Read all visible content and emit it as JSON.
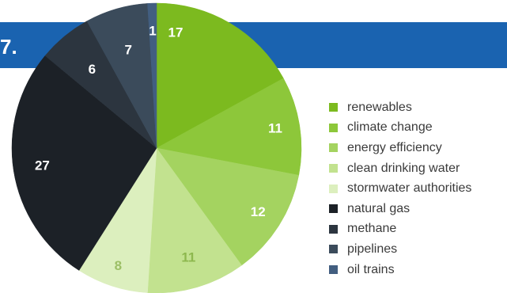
{
  "header": {
    "fragment_text": "7.",
    "bar_color": "#1a63b0"
  },
  "chart_data": {
    "type": "pie",
    "title": "",
    "start_angle_deg": 0,
    "direction": "clockwise",
    "slices": [
      {
        "label": "renewables",
        "value": 17,
        "color": "#7cba1f",
        "label_color": "#ffffff"
      },
      {
        "label": "climate change",
        "value": 11,
        "color": "#8dc73a",
        "label_color": "#ffffff"
      },
      {
        "label": "energy efficiency",
        "value": 12,
        "color": "#a4d360",
        "label_color": "#ffffff"
      },
      {
        "label": "clean drinking water",
        "value": 11,
        "color": "#c2e28f",
        "label_color": "#8db84e"
      },
      {
        "label": "stormwater authorities",
        "value": 8,
        "color": "#dcefbe",
        "label_color": "#9cbf66"
      },
      {
        "label": "natural gas",
        "value": 27,
        "color": "#1c2127",
        "label_color": "#ffffff"
      },
      {
        "label": "methane",
        "value": 6,
        "color": "#2c353f",
        "label_color": "#ffffff"
      },
      {
        "label": "pipelines",
        "value": 7,
        "color": "#3b4b5b",
        "label_color": "#ffffff"
      },
      {
        "label": "oil trains",
        "value": 1,
        "color": "#425e80",
        "label_color": "#ffffff"
      }
    ],
    "legend_position": "right"
  }
}
